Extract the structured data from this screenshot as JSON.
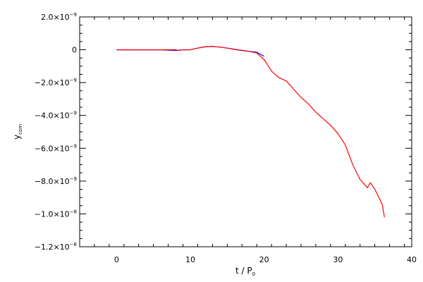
{
  "chart_data": {
    "type": "line",
    "title": "",
    "xlabel": {
      "main": "t / P",
      "subscript": "0"
    },
    "ylabel": {
      "main": "y",
      "subscript": "com"
    },
    "xlim": [
      -5,
      40
    ],
    "ylim": [
      -1.2e-08,
      2e-09
    ],
    "grid": false,
    "legend": "none",
    "x_ticks": [
      {
        "value": 0,
        "label": "0"
      },
      {
        "value": 10,
        "label": "10"
      },
      {
        "value": 20,
        "label": "20"
      },
      {
        "value": 30,
        "label": "30"
      },
      {
        "value": 40,
        "label": "40"
      }
    ],
    "y_ticks": [
      {
        "value": 2e-09,
        "mantissa": "2.0",
        "exp": "−9"
      },
      {
        "value": 0,
        "mantissa": "0",
        "exp": ""
      },
      {
        "value": -2e-09,
        "mantissa": "−2.0",
        "exp": "−9"
      },
      {
        "value": -4e-09,
        "mantissa": "−4.0",
        "exp": "−9"
      },
      {
        "value": -6e-09,
        "mantissa": "−6.0",
        "exp": "−9"
      },
      {
        "value": -8e-09,
        "mantissa": "−8.0",
        "exp": "−9"
      },
      {
        "value": -1e-08,
        "mantissa": "−1.0",
        "exp": "−8"
      },
      {
        "value": -1.2e-08,
        "mantissa": "−1.2",
        "exp": "−8"
      }
    ],
    "series": [
      {
        "color": "#0000ff",
        "x": [
          0,
          2,
          4,
          6,
          8,
          9,
          10,
          11,
          12,
          13,
          14,
          15,
          16,
          17,
          18,
          19,
          20
        ],
        "y": [
          0,
          0,
          0,
          0,
          -5e-11,
          0,
          0,
          1e-10,
          1.8e-10,
          2e-10,
          1.6e-10,
          1e-10,
          2e-11,
          -5e-11,
          -1e-10,
          -1.5e-10,
          -4e-10
        ]
      },
      {
        "color": "#ff0000",
        "x": [
          0,
          2,
          4,
          6,
          8,
          8.5,
          9,
          10,
          11,
          12,
          13,
          14,
          15,
          16,
          17,
          18,
          19,
          20,
          21,
          22,
          23,
          24,
          25,
          26,
          27,
          28,
          29,
          30,
          31,
          32,
          33,
          34,
          34.4,
          35,
          36,
          36.3
        ],
        "y": [
          0,
          0,
          0,
          0,
          0,
          -5e-11,
          0,
          0,
          1e-10,
          1.8e-10,
          2e-10,
          1.6e-10,
          1e-10,
          3e-11,
          -3e-11,
          -1e-10,
          -2e-10,
          -6e-10,
          -1.3e-09,
          -1.7e-09,
          -1.9e-09,
          -2.4e-09,
          -2.9e-09,
          -3.3e-09,
          -3.8e-09,
          -4.2e-09,
          -4.6e-09,
          -5.1e-09,
          -5.8e-09,
          -7e-09,
          -7.9e-09,
          -8.4e-09,
          -8.1e-09,
          -8.5e-09,
          -9.4e-09,
          -1.02e-08
        ]
      }
    ]
  }
}
